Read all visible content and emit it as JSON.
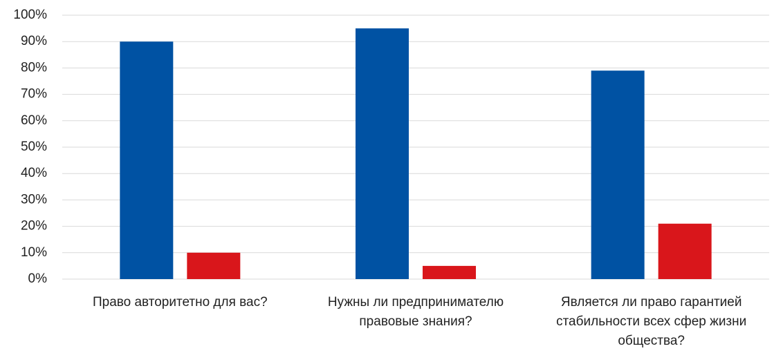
{
  "chart_data": {
    "type": "bar",
    "categories": [
      "Право авторитетно для вас?",
      "Нужны ли предпринимателю правовые знания?",
      "Является ли право гарантией стабильности всех сфер жизни общества?"
    ],
    "series": [
      {
        "color": "#0052a3",
        "values": [
          90,
          95,
          79
        ]
      },
      {
        "color": "#d9161b",
        "values": [
          10,
          5,
          21
        ]
      }
    ],
    "ylim": [
      0,
      100
    ],
    "yticks": [
      {
        "value": 0,
        "label": "0%"
      },
      {
        "value": 10,
        "label": "10%"
      },
      {
        "value": 20,
        "label": "20%"
      },
      {
        "value": 30,
        "label": "30%"
      },
      {
        "value": 40,
        "label": "40%"
      },
      {
        "value": 50,
        "label": "50%"
      },
      {
        "value": 60,
        "label": "60%"
      },
      {
        "value": 70,
        "label": "70%"
      },
      {
        "value": 80,
        "label": "80%"
      },
      {
        "value": 90,
        "label": "90%"
      },
      {
        "value": 100,
        "label": "100%"
      }
    ],
    "grid": true
  }
}
